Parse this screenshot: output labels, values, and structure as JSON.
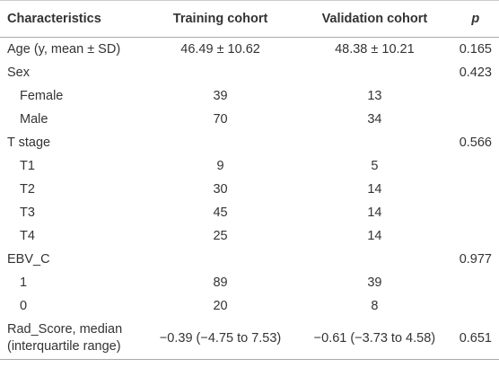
{
  "table": {
    "header": [
      "Characteristics",
      "Training cohort",
      "Validation cohort",
      "p"
    ],
    "rows": [
      {
        "label": "Age (y, mean ± SD)",
        "training": "46.49 ± 10.62",
        "validation": "48.38 ± 10.21",
        "p": "0.165"
      },
      {
        "label": "Sex",
        "p": "0.423",
        "items": [
          {
            "label": "Female",
            "training": 39,
            "validation": 13
          },
          {
            "label": "Male",
            "training": 70,
            "validation": 34
          }
        ]
      },
      {
        "label": "T stage",
        "p": "0.566",
        "items": [
          {
            "label": "T1",
            "training": 9,
            "validation": 5
          },
          {
            "label": "T2",
            "training": 30,
            "validation": 14
          },
          {
            "label": "T3",
            "training": 45,
            "validation": 14
          },
          {
            "label": "T4",
            "training": 25,
            "validation": 14
          }
        ]
      },
      {
        "label": "EBV_C",
        "p": "0.977",
        "items": [
          {
            "label": "1",
            "training": 89,
            "validation": 39
          },
          {
            "label": "0",
            "training": 20,
            "validation": 8
          }
        ]
      },
      {
        "label": [
          "Rad_Score, median",
          "(interquartile range)"
        ],
        "training": "−0.39 (−4.75 to 7.53)",
        "validation": "−0.61 (−3.73 to 4.58)",
        "p": "0.651"
      }
    ]
  }
}
